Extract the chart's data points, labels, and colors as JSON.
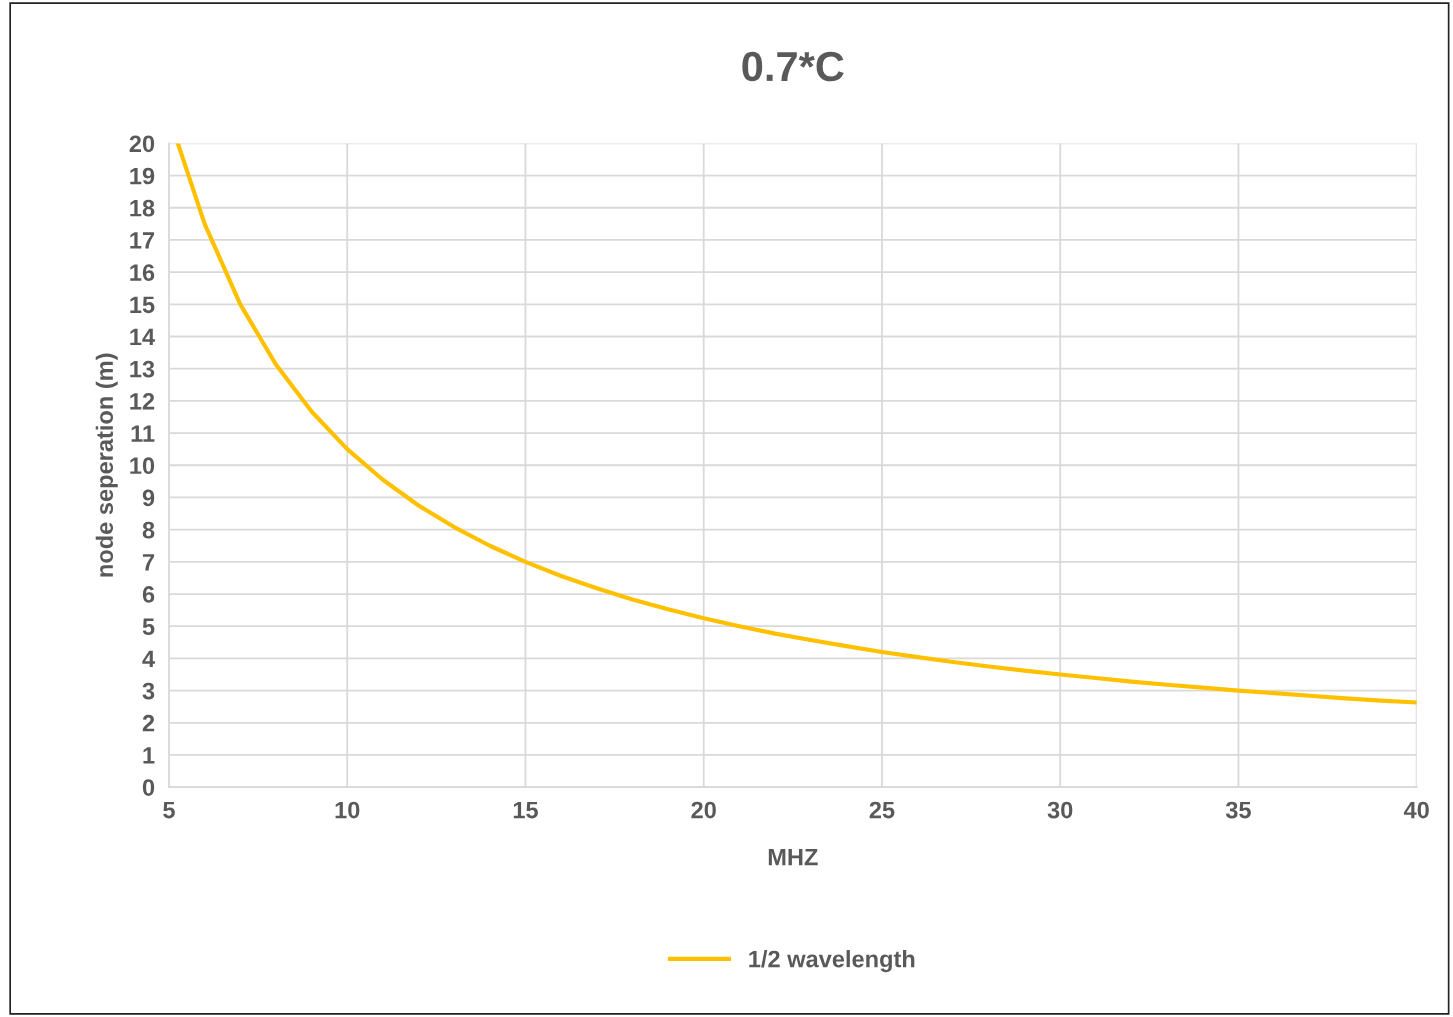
{
  "chart_data": {
    "type": "line",
    "title": "0.7*C",
    "xlabel": "MHZ",
    "ylabel": "node seperation (m)",
    "xlim": [
      5,
      40
    ],
    "xticks": [
      5,
      10,
      15,
      20,
      25,
      30,
      35,
      40
    ],
    "ylim": [
      0,
      20
    ],
    "yticks": [
      0,
      1,
      2,
      3,
      4,
      5,
      6,
      7,
      8,
      9,
      10,
      11,
      12,
      13,
      14,
      15,
      16,
      17,
      18,
      19,
      20
    ],
    "grid": true,
    "legend": "bottom",
    "marker": "none",
    "line_style": "solid",
    "series": [
      {
        "name": "1/2 wavelength",
        "color": "#ffc000",
        "x": [
          5.25,
          6,
          7,
          8,
          9,
          10,
          11,
          12,
          13,
          14,
          15,
          16,
          17,
          18,
          19,
          20,
          21,
          22,
          23,
          24,
          25,
          26,
          27,
          28,
          29,
          30,
          31,
          32,
          33,
          34,
          35,
          36,
          37,
          38,
          39,
          40
        ],
        "values": [
          20,
          17.5,
          15,
          13.13,
          11.67,
          10.5,
          9.55,
          8.75,
          8.08,
          7.5,
          7,
          6.56,
          6.18,
          5.83,
          5.53,
          5.25,
          5,
          4.77,
          4.57,
          4.38,
          4.2,
          4.04,
          3.89,
          3.75,
          3.62,
          3.5,
          3.39,
          3.28,
          3.18,
          3.09,
          3,
          2.92,
          2.84,
          2.76,
          2.69,
          2.63
        ]
      }
    ]
  }
}
